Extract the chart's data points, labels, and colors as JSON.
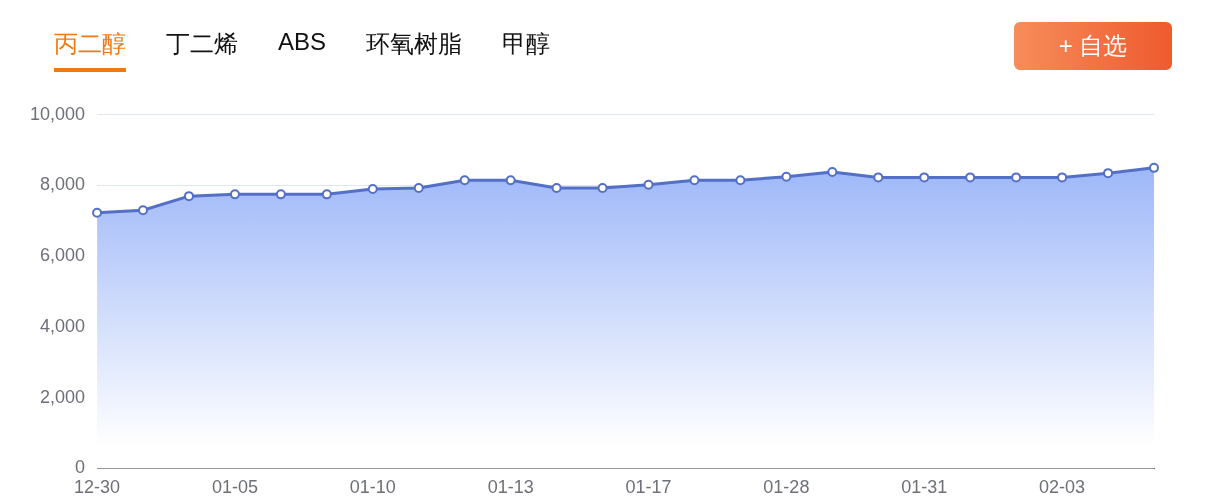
{
  "chart_data": {
    "type": "area",
    "annotations": [
      "丙二醇",
      "丁二烯",
      "ABS",
      "环氧树脂",
      "甲醇",
      "+ 自选"
    ],
    "categories": [
      "12-30",
      null,
      null,
      "01-05",
      null,
      null,
      "01-10",
      null,
      null,
      "01-13",
      null,
      null,
      "01-17",
      null,
      null,
      "01-28",
      null,
      null,
      "01-31",
      null,
      null,
      "02-03",
      null,
      null
    ],
    "series": [
      {
        "color": "#5470c6",
        "values": [
          7230,
          7300,
          7700,
          7750,
          7750,
          7750,
          7900,
          7930,
          8150,
          8150,
          7930,
          7930,
          8020,
          8150,
          8150,
          8250,
          8380,
          8230,
          8230,
          8230,
          8230,
          8230,
          8350,
          8500
        ]
      }
    ],
    "ylim": [
      0,
      10000
    ],
    "yticks": [
      {
        "value": 0,
        "label": "0"
      },
      {
        "value": 2000,
        "label": "2,000"
      },
      {
        "value": 4000,
        "label": "4,000"
      },
      {
        "value": 6000,
        "label": "6,000"
      },
      {
        "value": 8000,
        "label": "8,000"
      },
      {
        "value": 10000,
        "label": "10,000"
      }
    ],
    "grid": "y",
    "legend": false,
    "marker": "circle",
    "line_style": "solid"
  }
}
